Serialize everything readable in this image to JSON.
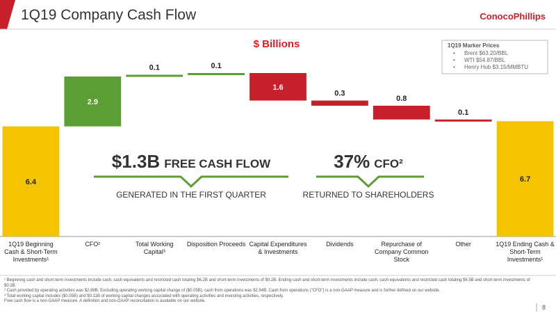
{
  "header": {
    "title": "1Q19 Company Cash Flow",
    "logo": "ConocoPhillips"
  },
  "chart_data": {
    "type": "waterfall",
    "subtitle": "$ Billions",
    "categories": [
      "1Q19 Beginning Cash & Short-Term Investments¹",
      "CFO²",
      "Total Working Capital³",
      "Disposition Proceeds",
      "Capital Expenditures & Investments",
      "Dividends",
      "Repurchase of Company Common Stock",
      "Other",
      "1Q19 Ending Cash & Short-Term Investments¹"
    ],
    "values": [
      6.4,
      2.9,
      0.1,
      0.1,
      -1.6,
      -0.3,
      -0.8,
      -0.1,
      6.7
    ],
    "value_labels": [
      "6.4",
      "2.9",
      "0.1",
      "0.1",
      "1.6",
      "0.3",
      "0.8",
      "0.1",
      "6.7"
    ],
    "colors": [
      "#f5c400",
      "#5a9e34",
      "#5a9e34",
      "#5a9e34",
      "#c8202a",
      "#c8202a",
      "#c8202a",
      "#c8202a",
      "#f5c400"
    ]
  },
  "marker_prices": {
    "title": "1Q19 Marker Prices",
    "items": [
      "Brent $63.20/BBL",
      "WTI $54.87/BBL",
      "Henry Hub $3.15/MMBTU"
    ]
  },
  "callouts": [
    {
      "figure": "$1.3B",
      "label": "FREE CASH FLOW",
      "caption": "GENERATED IN THE FIRST QUARTER"
    },
    {
      "figure": "37%",
      "label": "CFO²",
      "caption": "RETURNED TO SHAREHOLDERS"
    }
  ],
  "footnotes": [
    "¹ Beginning cash and short-term investments include cash, cash equivalents and restricted cash totaling $6.2B and short-term investments of $0.2B. Ending cash and short-term investments include cash, cash equivalents and restricted cash totaling $6.5B and short-term investments of $0.2B.",
    "² Cash provided by operating activities was $2.89B. Excluding operating working capital change of ($0.05B), cash from operations was $2.94B. Cash from operations (\"CFO\") is a non-GAAP measure and is further defined on our website.",
    "³ Total working capital includes ($0.05B) and $0.11B of working capital changes associated with operating activities and investing activities, respectively.",
    "Free cash flow is a non-GAAP measure. A definition and non-GAAP reconciliation is available on our website."
  ],
  "page_number": "8"
}
